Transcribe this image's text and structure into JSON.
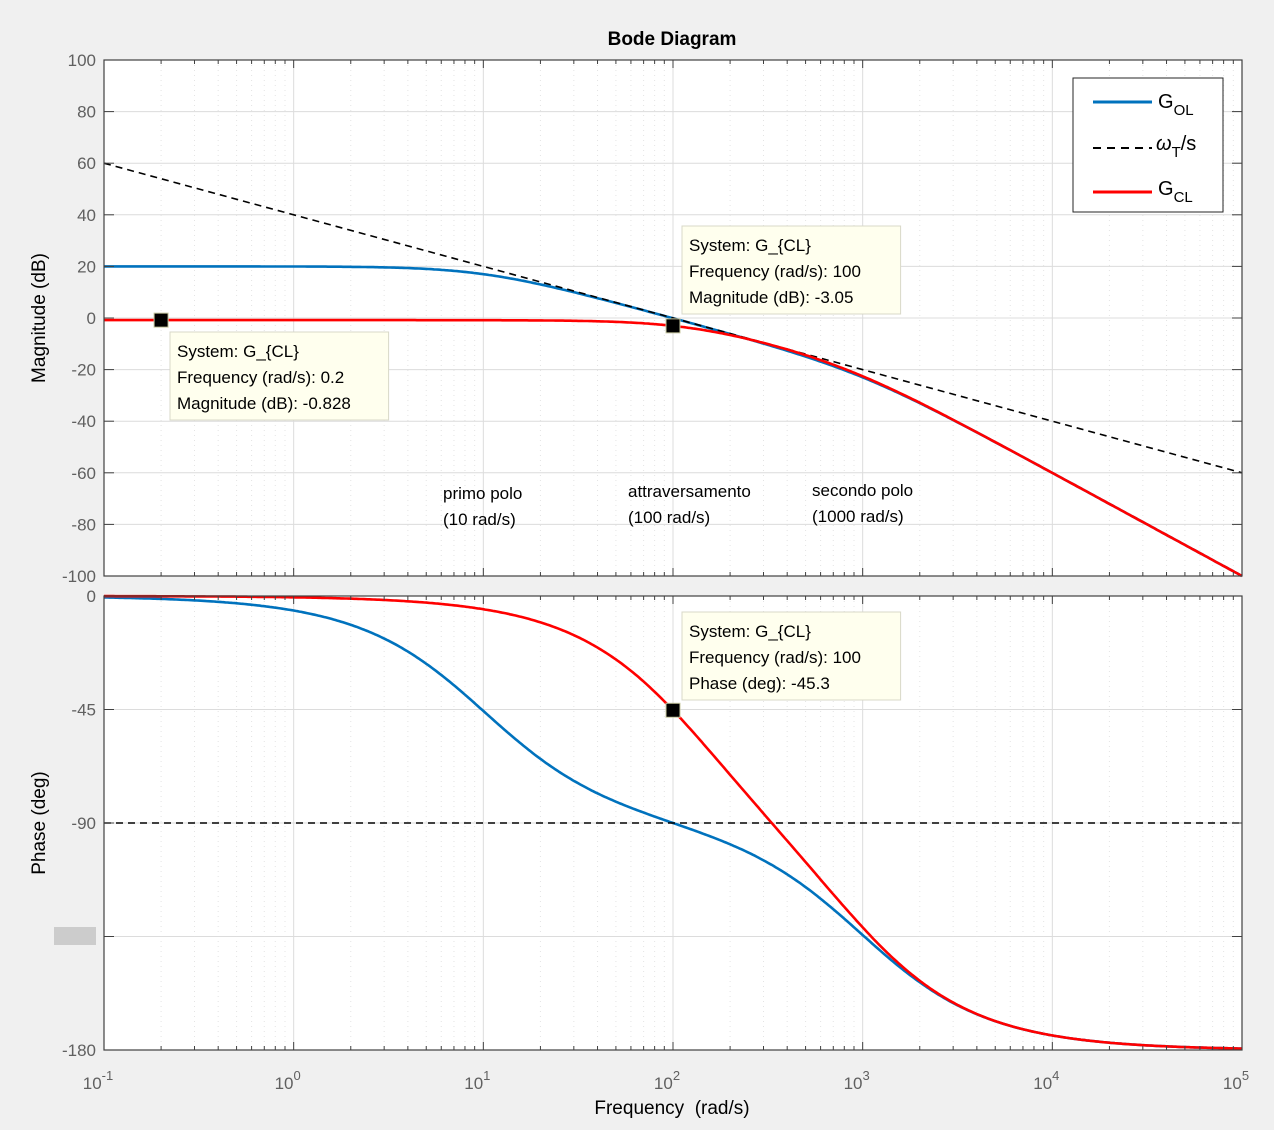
{
  "chart_data": [
    {
      "type": "line",
      "panel": "magnitude",
      "title": "Bode Diagram",
      "xlabel": "",
      "ylabel": "Magnitude (dB)",
      "xscale": "log",
      "xlim": [
        0.1,
        100000
      ],
      "ylim": [
        -100,
        100
      ],
      "yticks": [
        -100,
        -80,
        -60,
        -40,
        -20,
        0,
        20,
        40,
        60,
        80,
        100
      ],
      "grid": true,
      "legend": {
        "placement": "top-right",
        "entries": [
          {
            "base": "G",
            "sub": "OL",
            "suffix": "",
            "color": "#0072bd",
            "style": "solid"
          },
          {
            "base": "ω",
            "sub": "T",
            "suffix": "/s",
            "color": "#000000",
            "style": "dashed"
          },
          {
            "base": "G",
            "sub": "CL",
            "suffix": "",
            "color": "#ff0000",
            "style": "solid"
          }
        ]
      },
      "series": [
        {
          "name": "G_OL",
          "color": "#0072bd",
          "style": "solid",
          "x": [
            0.1,
            1,
            3,
            10,
            30,
            100,
            300,
            1000,
            3000,
            10000,
            100000
          ],
          "y": [
            20.0,
            20.0,
            19.6,
            17.0,
            10.0,
            -0.04,
            -10.1,
            -23.0,
            -39.9,
            -60.0,
            -100.0
          ]
        },
        {
          "name": "ωT/s",
          "color": "#000000",
          "style": "dashed",
          "x": [
            0.1,
            100000
          ],
          "y": [
            60,
            -60
          ]
        },
        {
          "name": "G_CL",
          "color": "#ff0000",
          "style": "solid",
          "x": [
            0.1,
            0.2,
            1,
            10,
            30,
            100,
            300,
            1000,
            3000,
            10000,
            100000
          ],
          "y": [
            -0.828,
            -0.828,
            -0.83,
            -0.9,
            -1.5,
            -3.05,
            -10.6,
            -23.0,
            -40.0,
            -60.0,
            -100.0
          ]
        }
      ],
      "annotations": [
        {
          "lines": [
            "primo polo",
            "(10 rad/s)"
          ]
        },
        {
          "lines": [
            "attraversamento",
            "(100 rad/s)"
          ]
        },
        {
          "lines": [
            "secondo polo",
            "(1000 rad/s)"
          ]
        }
      ],
      "datatips": [
        {
          "x": 0.2,
          "y": -0.828,
          "lines": [
            "System: G_{CL}",
            "Frequency (rad/s): 0.2",
            "Magnitude (dB): -0.828"
          ]
        },
        {
          "x": 100,
          "y": -3.05,
          "lines": [
            "System: G_{CL}",
            "Frequency (rad/s): 100",
            "Magnitude (dB): -3.05"
          ]
        }
      ]
    },
    {
      "type": "line",
      "panel": "phase",
      "xlabel": "Frequency  (rad/s)",
      "ylabel": "Phase (deg)",
      "xscale": "log",
      "xlim": [
        0.1,
        100000
      ],
      "xticks": [
        {
          "base": "10",
          "exp": "-1"
        },
        {
          "base": "10",
          "exp": "0"
        },
        {
          "base": "10",
          "exp": "1"
        },
        {
          "base": "10",
          "exp": "2"
        },
        {
          "base": "10",
          "exp": "3"
        },
        {
          "base": "10",
          "exp": "4"
        },
        {
          "base": "10",
          "exp": "5"
        }
      ],
      "ylim": [
        -180,
        0
      ],
      "yticks": [
        {
          "value": -180,
          "label": "-180"
        },
        {
          "value": -135,
          "label": ""
        },
        {
          "value": -90,
          "label": "-90"
        },
        {
          "value": -45,
          "label": "-45"
        },
        {
          "value": 0,
          "label": "0"
        }
      ],
      "grid": true,
      "series": [
        {
          "name": "G_OL",
          "color": "#0072bd",
          "style": "solid",
          "x": [
            0.1,
            1,
            3,
            10,
            30,
            100,
            300,
            1000,
            3000,
            10000,
            100000
          ],
          "y": [
            -0.6,
            -5.8,
            -16.9,
            -45.6,
            -73.2,
            -90.0,
            -106.4,
            -134.4,
            -161.3,
            -173.7,
            -179.4
          ]
        },
        {
          "name": "ωT/s",
          "color": "#000000",
          "style": "dashed",
          "x": [
            0.1,
            100000
          ],
          "y": [
            -90,
            -90
          ]
        },
        {
          "name": "G_CL",
          "color": "#ff0000",
          "style": "solid",
          "x": [
            0.1,
            1,
            10,
            30,
            100,
            300,
            1000,
            3000,
            10000,
            100000
          ],
          "y": [
            -0.05,
            -0.5,
            -4.5,
            -12.5,
            -45.3,
            -89.0,
            -134.0,
            -161.0,
            -173.7,
            -179.4
          ]
        }
      ],
      "datatips": [
        {
          "x": 100,
          "y": -45.3,
          "lines": [
            "System: G_{CL}",
            "Frequency (rad/s): 100",
            "Phase (deg): -45.3"
          ]
        }
      ]
    }
  ]
}
